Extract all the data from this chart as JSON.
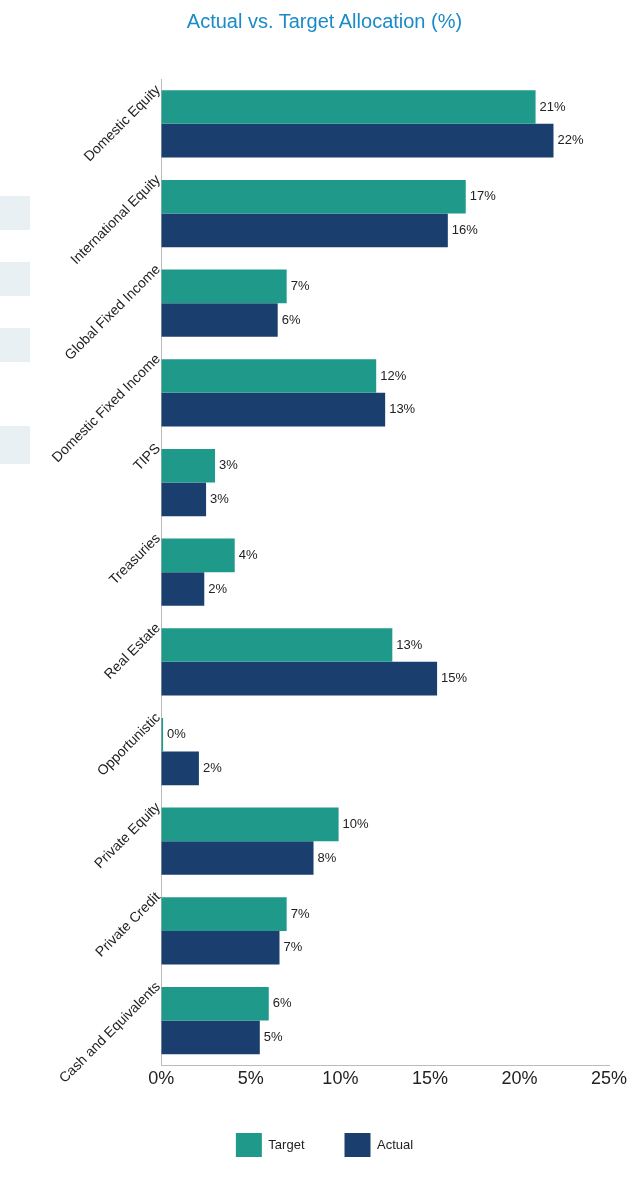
{
  "chart_data": {
    "type": "bar",
    "orientation": "horizontal",
    "title": "Actual vs. Target Allocation (%)",
    "categories": [
      "Domestic Equity",
      "International Equity",
      "Global Fixed Income",
      "Domestic Fixed Income",
      "TIPS",
      "Treasuries",
      "Real Estate",
      "Opportunistic",
      "Private Equity",
      "Private Credit",
      "Cash and Equivalents"
    ],
    "series": [
      {
        "name": "Target",
        "color": "#1f9a8a",
        "values": [
          20.9,
          17.0,
          7.0,
          12.0,
          3.0,
          4.1,
          12.9,
          0.1,
          9.9,
          7.0,
          6.0
        ],
        "value_labels": [
          "21%",
          "17%",
          "7%",
          "12%",
          "3%",
          "4%",
          "13%",
          "0%",
          "10%",
          "7%",
          "6%"
        ]
      },
      {
        "name": "Actual",
        "color": "#1a3f6f",
        "values": [
          21.9,
          16.0,
          6.5,
          12.5,
          2.5,
          2.4,
          15.4,
          2.1,
          8.5,
          6.6,
          5.5
        ],
        "value_labels": [
          "22%",
          "16%",
          "6%",
          "13%",
          "3%",
          "2%",
          "15%",
          "2%",
          "8%",
          "7%",
          "5%"
        ]
      }
    ],
    "xlim": [
      0,
      25
    ],
    "xticks": [
      {
        "value": 0,
        "label": "0%"
      },
      {
        "value": 5,
        "label": "5%"
      },
      {
        "value": 10,
        "label": "10%"
      },
      {
        "value": 15,
        "label": "15%"
      },
      {
        "value": 20,
        "label": "20%"
      },
      {
        "value": 25,
        "label": "25%"
      }
    ],
    "grid": false,
    "legend": "bottom"
  }
}
